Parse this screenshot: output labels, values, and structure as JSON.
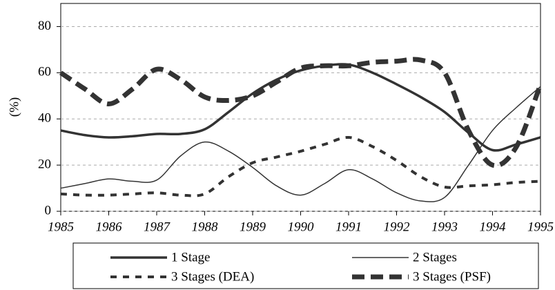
{
  "chart_data": {
    "type": "line",
    "y_label": "(%)",
    "x": [
      1985,
      1985.5,
      1986,
      1986.5,
      1987,
      1987.5,
      1988,
      1988.5,
      1989,
      1989.5,
      1990,
      1990.5,
      1991,
      1991.5,
      1992,
      1992.5,
      1993,
      1993.5,
      1994,
      1994.5,
      1995
    ],
    "xlim": [
      1985,
      1995
    ],
    "xticks": [
      1985,
      1986,
      1987,
      1988,
      1989,
      1990,
      1991,
      1992,
      1993,
      1994,
      1995
    ],
    "ylim": [
      0,
      90
    ],
    "yticks": [
      0,
      20,
      40,
      60,
      80
    ],
    "grid": true,
    "legend": "bottom",
    "series": [
      {
        "name": "1 Stage",
        "color": "#333333",
        "style": "solid",
        "weight": "thick",
        "values": [
          35,
          33,
          32,
          32.5,
          33.5,
          33.5,
          35.5,
          43,
          51,
          57,
          61,
          63,
          63.5,
          60,
          55,
          49.5,
          43,
          34,
          26.5,
          29,
          32
        ]
      },
      {
        "name": "2 Stages",
        "color": "#333333",
        "style": "solid",
        "weight": "thin",
        "values": [
          10,
          12,
          14,
          13,
          13.5,
          24,
          30,
          26,
          19,
          11,
          7,
          12,
          18,
          14,
          8,
          4.5,
          6,
          20,
          35,
          45,
          54
        ]
      },
      {
        "name": "3 Stages (DEA)",
        "color": "#333333",
        "style": "dashed",
        "weight": "medium",
        "values": [
          7.5,
          7,
          7,
          7.5,
          8,
          7,
          7.5,
          15,
          21,
          23.5,
          26,
          29,
          32,
          28,
          22,
          15,
          10.5,
          11,
          11.5,
          12.5,
          13
        ]
      },
      {
        "name": "3 Stages (PSF)",
        "color": "#333333",
        "style": "dashed",
        "weight": "heavy",
        "values": [
          60,
          53,
          46.5,
          53,
          61.5,
          57,
          49.5,
          48,
          50,
          56,
          62,
          63,
          63,
          64.5,
          65,
          65.5,
          60,
          35,
          20,
          28,
          55
        ]
      }
    ]
  }
}
